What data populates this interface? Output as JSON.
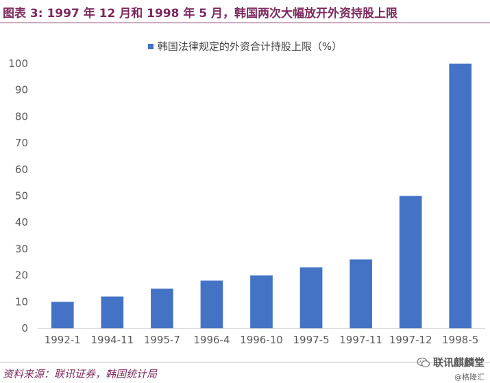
{
  "figure_title": "图表 3: 1997 年 12 月和 1998 年 5 月，韩国两次大幅放开外资持股上限",
  "source_note": "资料来源：联讯证券，韩国统计局",
  "watermark": {
    "name": "联讯麒麟堂",
    "handle": "@格隆汇"
  },
  "colors": {
    "title": "#7b2a5e",
    "bar": "#4472c4",
    "axis_text": "#595959",
    "grid": "#d9d9d9"
  },
  "chart_data": {
    "type": "bar",
    "title": "",
    "xlabel": "",
    "ylabel": "",
    "categories": [
      "1992-1",
      "1994-11",
      "1995-7",
      "1996-4",
      "1996-10",
      "1997-5",
      "1997-11",
      "1997-12",
      "1998-5"
    ],
    "series": [
      {
        "name": "韩国法律规定的外资合计持股上限（%）",
        "values": [
          10,
          12,
          15,
          18,
          20,
          23,
          26,
          50,
          100
        ]
      }
    ],
    "yticks": [
      0,
      10,
      20,
      30,
      40,
      50,
      60,
      70,
      80,
      90,
      100
    ],
    "ylim": [
      0,
      100
    ],
    "grid": false,
    "legend": "top-center"
  }
}
